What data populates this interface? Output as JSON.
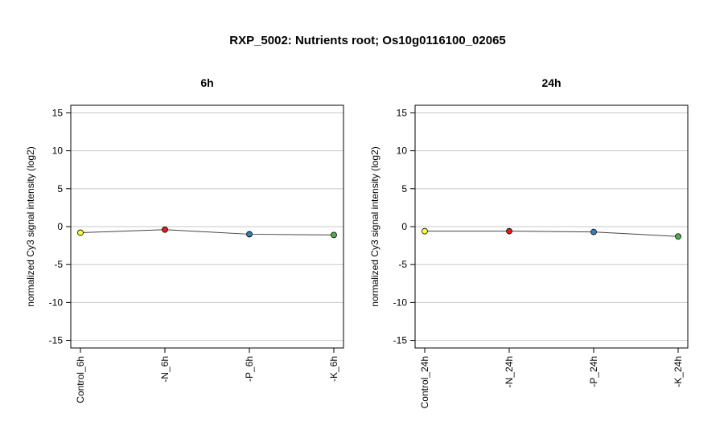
{
  "title": "RXP_5002: Nutrients root; Os10g0116100_02065",
  "colors": {
    "control": "#ffff33",
    "n": "#e41a1c",
    "p": "#377eb8",
    "k": "#4daf4a"
  },
  "chart_data": [
    {
      "type": "line",
      "title": "6h",
      "ylabel": "normalized Cy3 signal intensity (log2)",
      "ylim": [
        -16,
        16
      ],
      "yticks": [
        -15,
        -10,
        -5,
        0,
        5,
        10,
        15
      ],
      "grid": true,
      "categories": [
        "Control_6h",
        "-N_6h",
        "-P_6h",
        "-K_6h"
      ],
      "values": [
        -0.8,
        -0.4,
        -1.0,
        -1.1
      ],
      "point_colors": [
        "#ffff33",
        "#e41a1c",
        "#377eb8",
        "#4daf4a"
      ]
    },
    {
      "type": "line",
      "title": "24h",
      "ylabel": "normalized Cy3 signal intensity (log2)",
      "ylim": [
        -16,
        16
      ],
      "yticks": [
        -15,
        -10,
        -5,
        0,
        5,
        10,
        15
      ],
      "grid": true,
      "categories": [
        "Control_24h",
        "-N_24h",
        "-P_24h",
        "-K_24h"
      ],
      "values": [
        -0.6,
        -0.6,
        -0.7,
        -1.3
      ],
      "point_colors": [
        "#ffff33",
        "#e41a1c",
        "#377eb8",
        "#4daf4a"
      ]
    }
  ]
}
